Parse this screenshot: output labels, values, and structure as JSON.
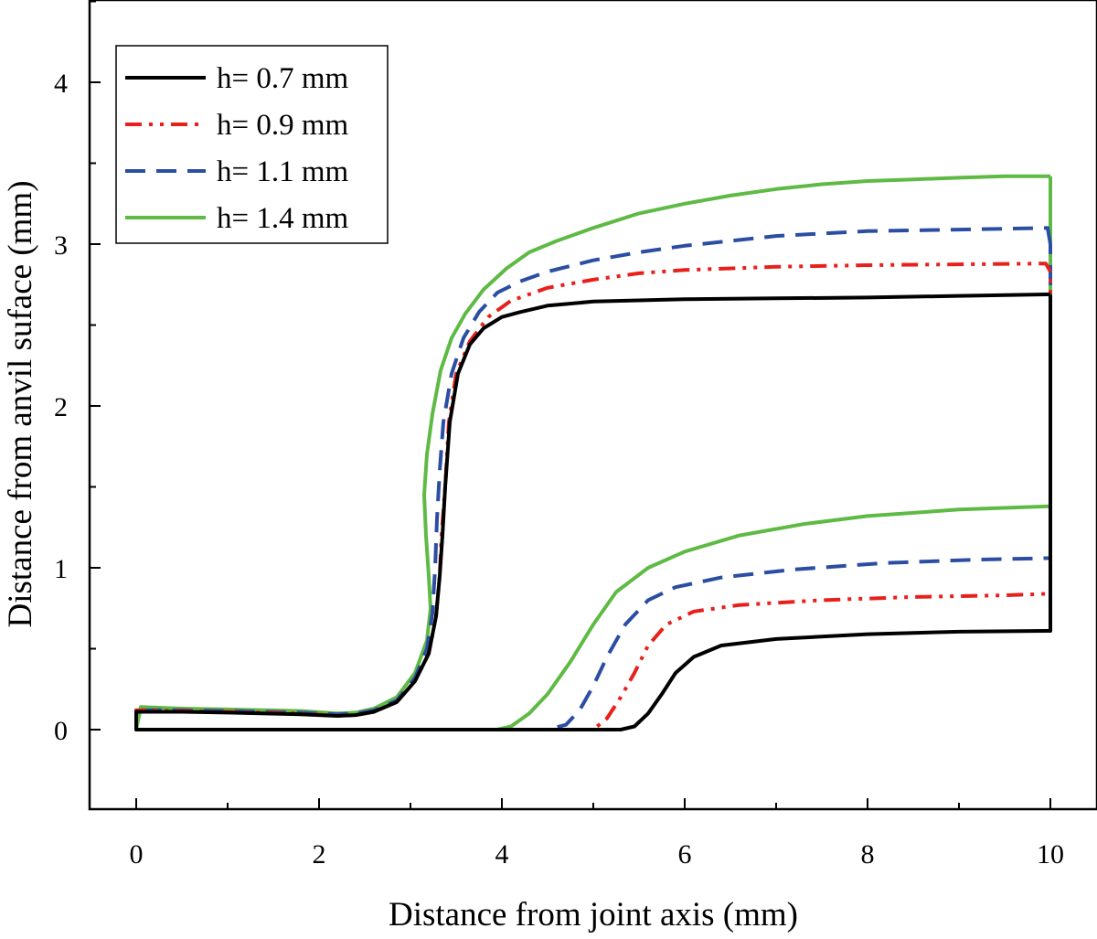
{
  "chart_data": {
    "type": "line",
    "title": "",
    "xlabel": "Distance from joint axis (mm)",
    "ylabel": "Distance from anvil suface (mm)",
    "xlim": [
      -0.5,
      10.5
    ],
    "ylim": [
      -0.5,
      4.5
    ],
    "xticks": [
      0,
      2,
      4,
      6,
      8,
      10
    ],
    "yticks": [
      0,
      1,
      2,
      3,
      4
    ],
    "grid": false,
    "legend_position": "top-left",
    "series": [
      {
        "name": "h= 0.7 mm",
        "color": "#000000",
        "style": "solid",
        "points": [
          [
            10,
            2.69
          ],
          [
            9,
            2.68
          ],
          [
            8,
            2.67
          ],
          [
            7,
            2.665
          ],
          [
            6,
            2.66
          ],
          [
            5,
            2.645
          ],
          [
            4.5,
            2.62
          ],
          [
            4.2,
            2.58
          ],
          [
            4.0,
            2.55
          ],
          [
            3.8,
            2.48
          ],
          [
            3.65,
            2.38
          ],
          [
            3.52,
            2.2
          ],
          [
            3.43,
            1.9
          ],
          [
            3.38,
            1.5
          ],
          [
            3.35,
            1.2
          ],
          [
            3.32,
            0.95
          ],
          [
            3.28,
            0.7
          ],
          [
            3.2,
            0.47
          ],
          [
            3.05,
            0.3
          ],
          [
            2.85,
            0.17
          ],
          [
            2.6,
            0.11
          ],
          [
            2.4,
            0.09
          ],
          [
            2.2,
            0.085
          ],
          [
            1.8,
            0.095
          ],
          [
            1.0,
            0.105
          ],
          [
            0.5,
            0.11
          ],
          [
            0.0,
            0.11
          ],
          [
            0.0,
            0.0
          ],
          [
            1.0,
            0.0
          ],
          [
            3.0,
            0.0
          ],
          [
            4.0,
            0.0
          ],
          [
            5.0,
            0.0
          ],
          [
            5.3,
            0.0
          ],
          [
            5.45,
            0.02
          ],
          [
            5.6,
            0.1
          ],
          [
            5.75,
            0.22
          ],
          [
            5.9,
            0.35
          ],
          [
            6.1,
            0.45
          ],
          [
            6.4,
            0.52
          ],
          [
            7.0,
            0.56
          ],
          [
            8.0,
            0.59
          ],
          [
            9.0,
            0.605
          ],
          [
            10.0,
            0.61
          ],
          [
            10.0,
            2.69
          ]
        ]
      },
      {
        "name": "h= 0.9 mm",
        "color": "#e8201c",
        "style": "dash-dot-dot",
        "points": [
          [
            10,
            2.83
          ],
          [
            9.95,
            2.88
          ],
          [
            9,
            2.875
          ],
          [
            8,
            2.87
          ],
          [
            7,
            2.86
          ],
          [
            6,
            2.84
          ],
          [
            5.5,
            2.82
          ],
          [
            5.0,
            2.78
          ],
          [
            4.5,
            2.73
          ],
          [
            4.1,
            2.65
          ],
          [
            3.85,
            2.55
          ],
          [
            3.65,
            2.4
          ],
          [
            3.5,
            2.2
          ],
          [
            3.42,
            1.9
          ],
          [
            3.38,
            1.5
          ],
          [
            3.34,
            1.2
          ],
          [
            3.32,
            0.95
          ],
          [
            3.28,
            0.7
          ],
          [
            3.2,
            0.47
          ],
          [
            3.05,
            0.3
          ],
          [
            2.85,
            0.17
          ],
          [
            2.6,
            0.11
          ],
          [
            2.4,
            0.09
          ],
          [
            2.2,
            0.085
          ],
          [
            1.8,
            0.1
          ],
          [
            1.0,
            0.11
          ],
          [
            0.5,
            0.115
          ],
          [
            0.0,
            0.12
          ],
          [
            0.0,
            0.0
          ],
          [
            1.0,
            0.0
          ],
          [
            3.0,
            0.0
          ],
          [
            4.0,
            0.0
          ],
          [
            4.8,
            0.0
          ],
          [
            5.0,
            0.0
          ],
          [
            5.15,
            0.07
          ],
          [
            5.3,
            0.2
          ],
          [
            5.45,
            0.35
          ],
          [
            5.6,
            0.52
          ],
          [
            5.8,
            0.65
          ],
          [
            6.1,
            0.73
          ],
          [
            6.6,
            0.77
          ],
          [
            7.5,
            0.8
          ],
          [
            8.5,
            0.82
          ],
          [
            9.5,
            0.83
          ],
          [
            10.0,
            0.84
          ],
          [
            10.0,
            2.83
          ]
        ]
      },
      {
        "name": "h= 1.1 mm",
        "color": "#2b4ea3",
        "style": "dash",
        "points": [
          [
            10,
            3.0
          ],
          [
            9.97,
            3.1
          ],
          [
            9,
            3.09
          ],
          [
            8,
            3.08
          ],
          [
            7,
            3.05
          ],
          [
            6,
            2.99
          ],
          [
            5.5,
            2.95
          ],
          [
            5.0,
            2.9
          ],
          [
            4.5,
            2.83
          ],
          [
            4.2,
            2.77
          ],
          [
            3.95,
            2.7
          ],
          [
            3.75,
            2.58
          ],
          [
            3.58,
            2.42
          ],
          [
            3.45,
            2.2
          ],
          [
            3.36,
            1.9
          ],
          [
            3.32,
            1.6
          ],
          [
            3.29,
            1.3
          ],
          [
            3.27,
            1.0
          ],
          [
            3.24,
            0.72
          ],
          [
            3.18,
            0.5
          ],
          [
            3.05,
            0.32
          ],
          [
            2.85,
            0.18
          ],
          [
            2.6,
            0.12
          ],
          [
            2.4,
            0.1
          ],
          [
            2.2,
            0.095
          ],
          [
            1.8,
            0.105
          ],
          [
            1.0,
            0.115
          ],
          [
            0.5,
            0.12
          ],
          [
            0.0,
            0.12
          ],
          [
            0.0,
            0.0
          ],
          [
            1.0,
            0.0
          ],
          [
            3.0,
            0.0
          ],
          [
            4.0,
            0.0
          ],
          [
            4.5,
            0.0
          ],
          [
            4.7,
            0.03
          ],
          [
            4.85,
            0.12
          ],
          [
            5.0,
            0.27
          ],
          [
            5.15,
            0.45
          ],
          [
            5.35,
            0.65
          ],
          [
            5.6,
            0.8
          ],
          [
            5.9,
            0.88
          ],
          [
            6.4,
            0.94
          ],
          [
            7.2,
            0.99
          ],
          [
            8.2,
            1.03
          ],
          [
            9.2,
            1.05
          ],
          [
            10.0,
            1.06
          ],
          [
            10.0,
            1.4
          ],
          [
            10.0,
            3.0
          ]
        ]
      },
      {
        "name": "h= 1.4 mm",
        "color": "#5fba45",
        "style": "solid",
        "points": [
          [
            10,
            3.42
          ],
          [
            9.5,
            3.42
          ],
          [
            9,
            3.41
          ],
          [
            8.5,
            3.4
          ],
          [
            8,
            3.39
          ],
          [
            7.5,
            3.37
          ],
          [
            7,
            3.34
          ],
          [
            6.5,
            3.3
          ],
          [
            6,
            3.25
          ],
          [
            5.5,
            3.19
          ],
          [
            5.0,
            3.1
          ],
          [
            4.6,
            3.02
          ],
          [
            4.3,
            2.95
          ],
          [
            4.05,
            2.85
          ],
          [
            3.8,
            2.72
          ],
          [
            3.6,
            2.57
          ],
          [
            3.45,
            2.42
          ],
          [
            3.33,
            2.22
          ],
          [
            3.24,
            1.95
          ],
          [
            3.18,
            1.7
          ],
          [
            3.15,
            1.45
          ],
          [
            3.17,
            1.2
          ],
          [
            3.2,
            0.95
          ],
          [
            3.22,
            0.75
          ],
          [
            3.18,
            0.55
          ],
          [
            3.05,
            0.35
          ],
          [
            2.85,
            0.2
          ],
          [
            2.6,
            0.13
          ],
          [
            2.4,
            0.105
          ],
          [
            2.2,
            0.1
          ],
          [
            1.8,
            0.115
          ],
          [
            1.0,
            0.125
          ],
          [
            0.5,
            0.13
          ],
          [
            0.05,
            0.14
          ],
          [
            0.0,
            0.0
          ],
          [
            1.0,
            0.0
          ],
          [
            2.0,
            0.0
          ],
          [
            3.0,
            0.0
          ],
          [
            3.95,
            0.0
          ],
          [
            4.1,
            0.02
          ],
          [
            4.3,
            0.1
          ],
          [
            4.5,
            0.22
          ],
          [
            4.75,
            0.42
          ],
          [
            5.0,
            0.65
          ],
          [
            5.25,
            0.85
          ],
          [
            5.6,
            1.0
          ],
          [
            6.0,
            1.1
          ],
          [
            6.6,
            1.2
          ],
          [
            7.3,
            1.27
          ],
          [
            8.0,
            1.32
          ],
          [
            9.0,
            1.36
          ],
          [
            10.0,
            1.38
          ],
          [
            10.0,
            3.42
          ]
        ]
      }
    ]
  }
}
